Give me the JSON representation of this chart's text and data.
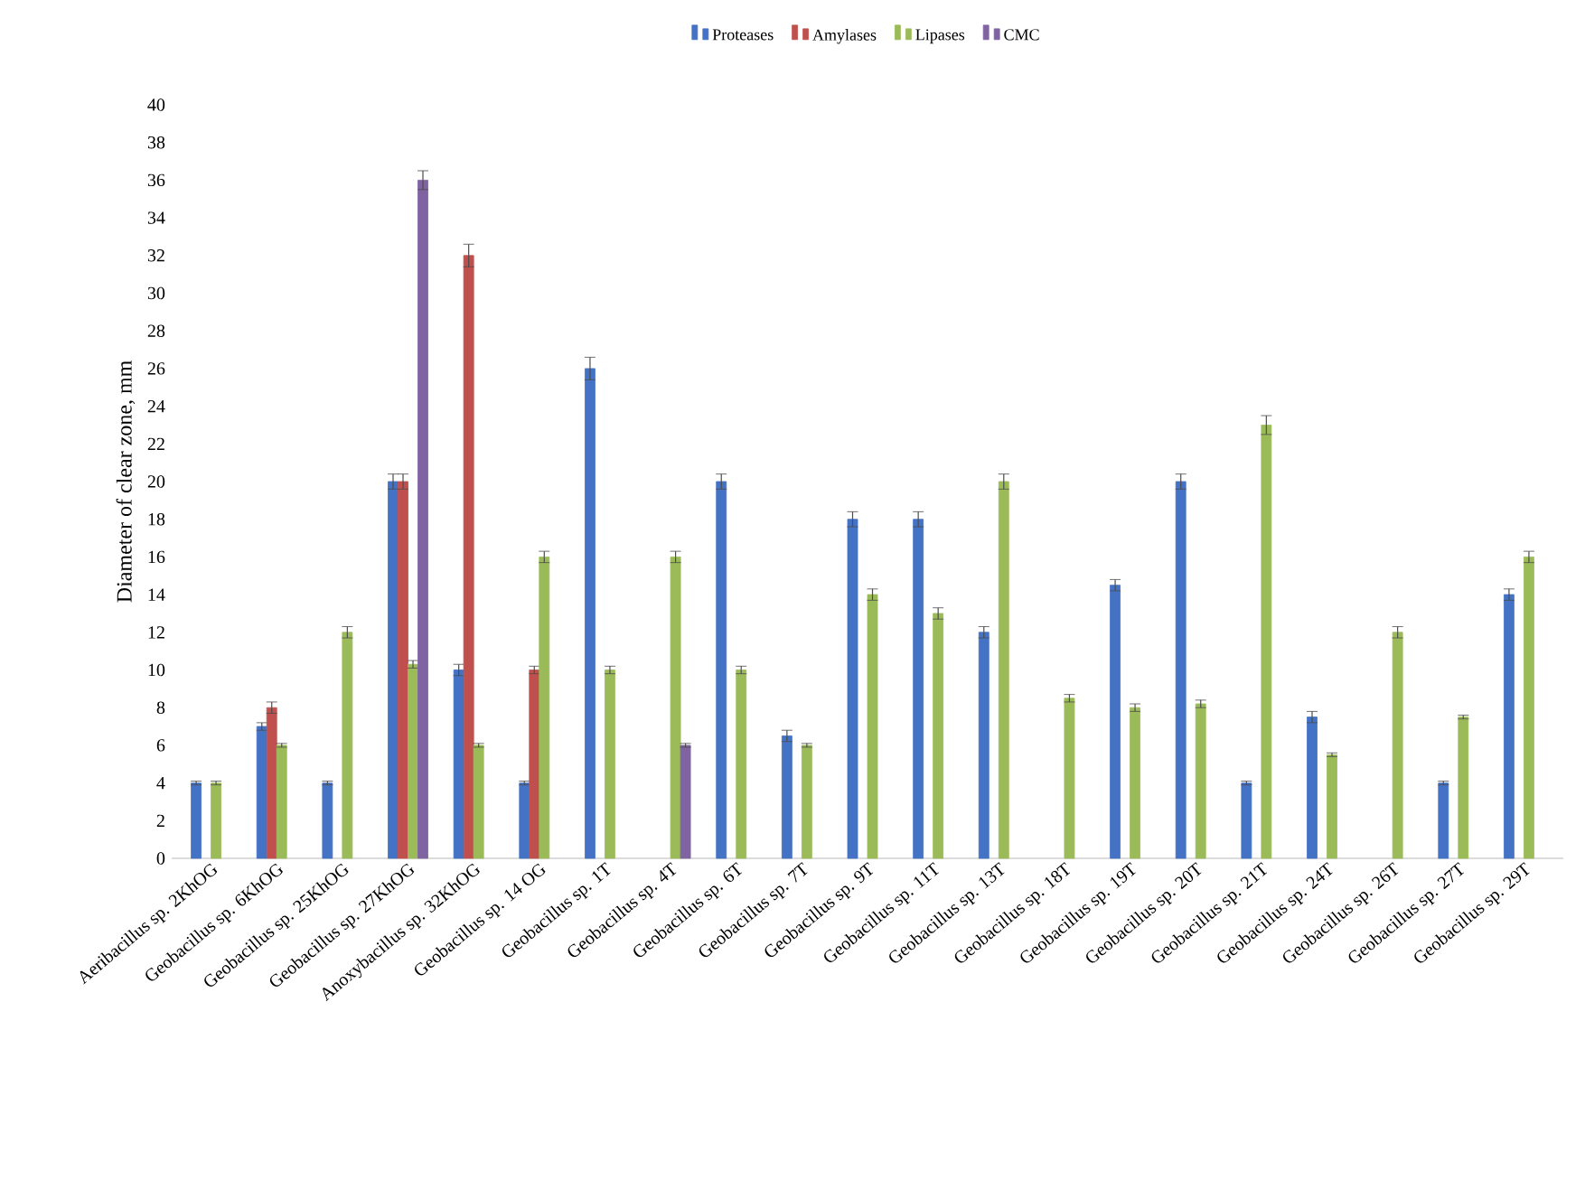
{
  "chart_data": {
    "type": "bar",
    "ylabel": "Diameter of clear zone, mm",
    "categories": [
      "Aeribacillus sp. 2KhOG",
      "Geobacillus sp. 6KhOG",
      "Geobacillus sp. 25KhOG",
      "Geobacillus sp. 27KhOG",
      "Anoxybacillus sp. 32KhOG",
      "Geobacillus sp. 14 OG",
      "Geobacillus sp. 1T",
      "Geobacillus sp. 4T",
      "Geobacillus sp. 6T",
      "Geobacillus sp. 7T",
      "Geobacillus sp. 9T",
      "Geobacillus sp. 11T",
      "Geobacillus sp. 13T",
      "Geobacillus sp. 18T",
      "Geobacillus sp. 19T",
      "Geobacillus sp. 20T",
      "Geobacillus sp. 21T",
      "Geobacillus sp. 24T",
      "Geobacillus sp. 26T",
      "Geobacillus sp. 27T",
      "Geobacillus sp. 29T"
    ],
    "series": [
      {
        "name": "Proteases",
        "color": "#4472c4",
        "values": [
          4,
          7,
          4,
          20,
          10,
          4,
          26,
          null,
          20,
          6.5,
          18,
          18,
          12,
          null,
          14.5,
          20,
          4,
          7.5,
          null,
          4,
          14
        ],
        "errors": [
          0.1,
          0.2,
          0.1,
          0.4,
          0.3,
          0.1,
          0.6,
          null,
          0.4,
          0.3,
          0.4,
          0.4,
          0.3,
          null,
          0.3,
          0.4,
          0.1,
          0.3,
          null,
          0.1,
          0.3
        ]
      },
      {
        "name": "Amylases",
        "color": "#c0504d",
        "values": [
          null,
          8,
          null,
          20,
          32,
          10,
          null,
          null,
          null,
          null,
          null,
          null,
          null,
          null,
          null,
          null,
          null,
          null,
          null,
          null,
          null
        ],
        "errors": [
          null,
          0.3,
          null,
          0.4,
          0.6,
          0.2,
          null,
          null,
          null,
          null,
          null,
          null,
          null,
          null,
          null,
          null,
          null,
          null,
          null,
          null,
          null
        ]
      },
      {
        "name": "Lipases",
        "color": "#9bbb59",
        "values": [
          4,
          6,
          12,
          10.3,
          6,
          16,
          10,
          16,
          10,
          6,
          14,
          13,
          20,
          8.5,
          8,
          8.2,
          23,
          5.5,
          12,
          7.5,
          16
        ],
        "errors": [
          0.1,
          0.1,
          0.3,
          0.2,
          0.1,
          0.3,
          0.2,
          0.3,
          0.2,
          0.1,
          0.3,
          0.3,
          0.4,
          0.2,
          0.2,
          0.2,
          0.5,
          0.1,
          0.3,
          0.1,
          0.3
        ]
      },
      {
        "name": "CMC",
        "color": "#8064a2",
        "values": [
          null,
          null,
          null,
          36,
          null,
          null,
          null,
          6,
          null,
          null,
          null,
          null,
          null,
          null,
          null,
          null,
          null,
          null,
          null,
          null,
          null
        ],
        "errors": [
          null,
          null,
          null,
          0.5,
          null,
          null,
          null,
          0.1,
          null,
          null,
          null,
          null,
          null,
          null,
          null,
          null,
          null,
          null,
          null,
          null,
          null
        ]
      }
    ],
    "ylim": [
      0,
      40
    ],
    "yticks": [
      0,
      2,
      4,
      6,
      8,
      10,
      12,
      14,
      16,
      18,
      20,
      22,
      24,
      26,
      28,
      30,
      32,
      34,
      36,
      38,
      40
    ],
    "grid": false,
    "legend": "top"
  }
}
